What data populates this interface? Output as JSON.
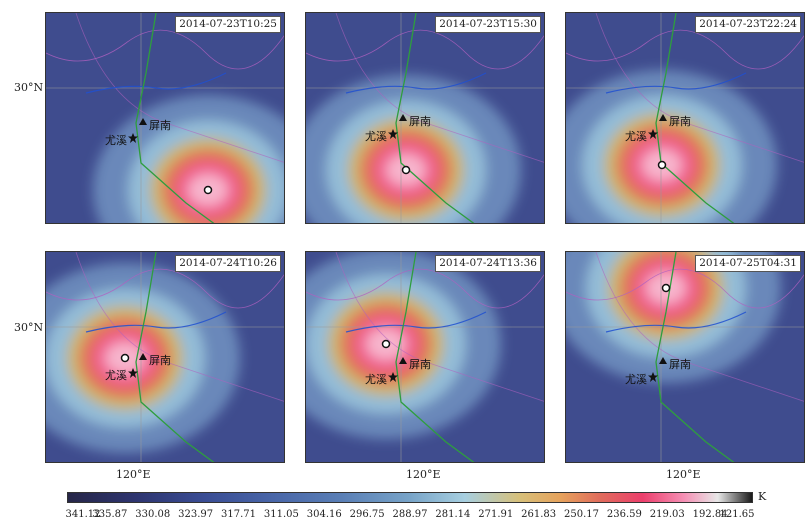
{
  "panels": [
    {
      "timestamp": "2014-07-23T10:25",
      "center": [
        162,
        177
      ]
    },
    {
      "timestamp": "2014-07-23T15:30",
      "center": [
        100,
        157
      ]
    },
    {
      "timestamp": "2014-07-23T22:24",
      "center": [
        96,
        152
      ]
    },
    {
      "timestamp": "2014-07-24T10:26",
      "center": [
        79,
        106
      ]
    },
    {
      "timestamp": "2014-07-24T13:36",
      "center": [
        80,
        92
      ]
    },
    {
      "timestamp": "2014-07-25T04:31",
      "center": [
        100,
        36
      ]
    }
  ],
  "stations": {
    "pingnan": "屏南",
    "youxi": "尤溪"
  },
  "axes": {
    "lat_label": "30°N",
    "lon_label": "120°E"
  },
  "colorbar": {
    "unit": "K",
    "values": [
      "341.12",
      "335.87",
      "330.08",
      "323.97",
      "317.71",
      "311.05",
      "304.16",
      "296.75",
      "288.97",
      "281.14",
      "271.91",
      "261.83",
      "250.17",
      "236.59",
      "219.03",
      "192.84",
      "121.65"
    ]
  },
  "colors": {
    "storm_core": "#f06090",
    "track": "#2e9e3e",
    "border": "#b060c0",
    "river": "#2050d0"
  }
}
